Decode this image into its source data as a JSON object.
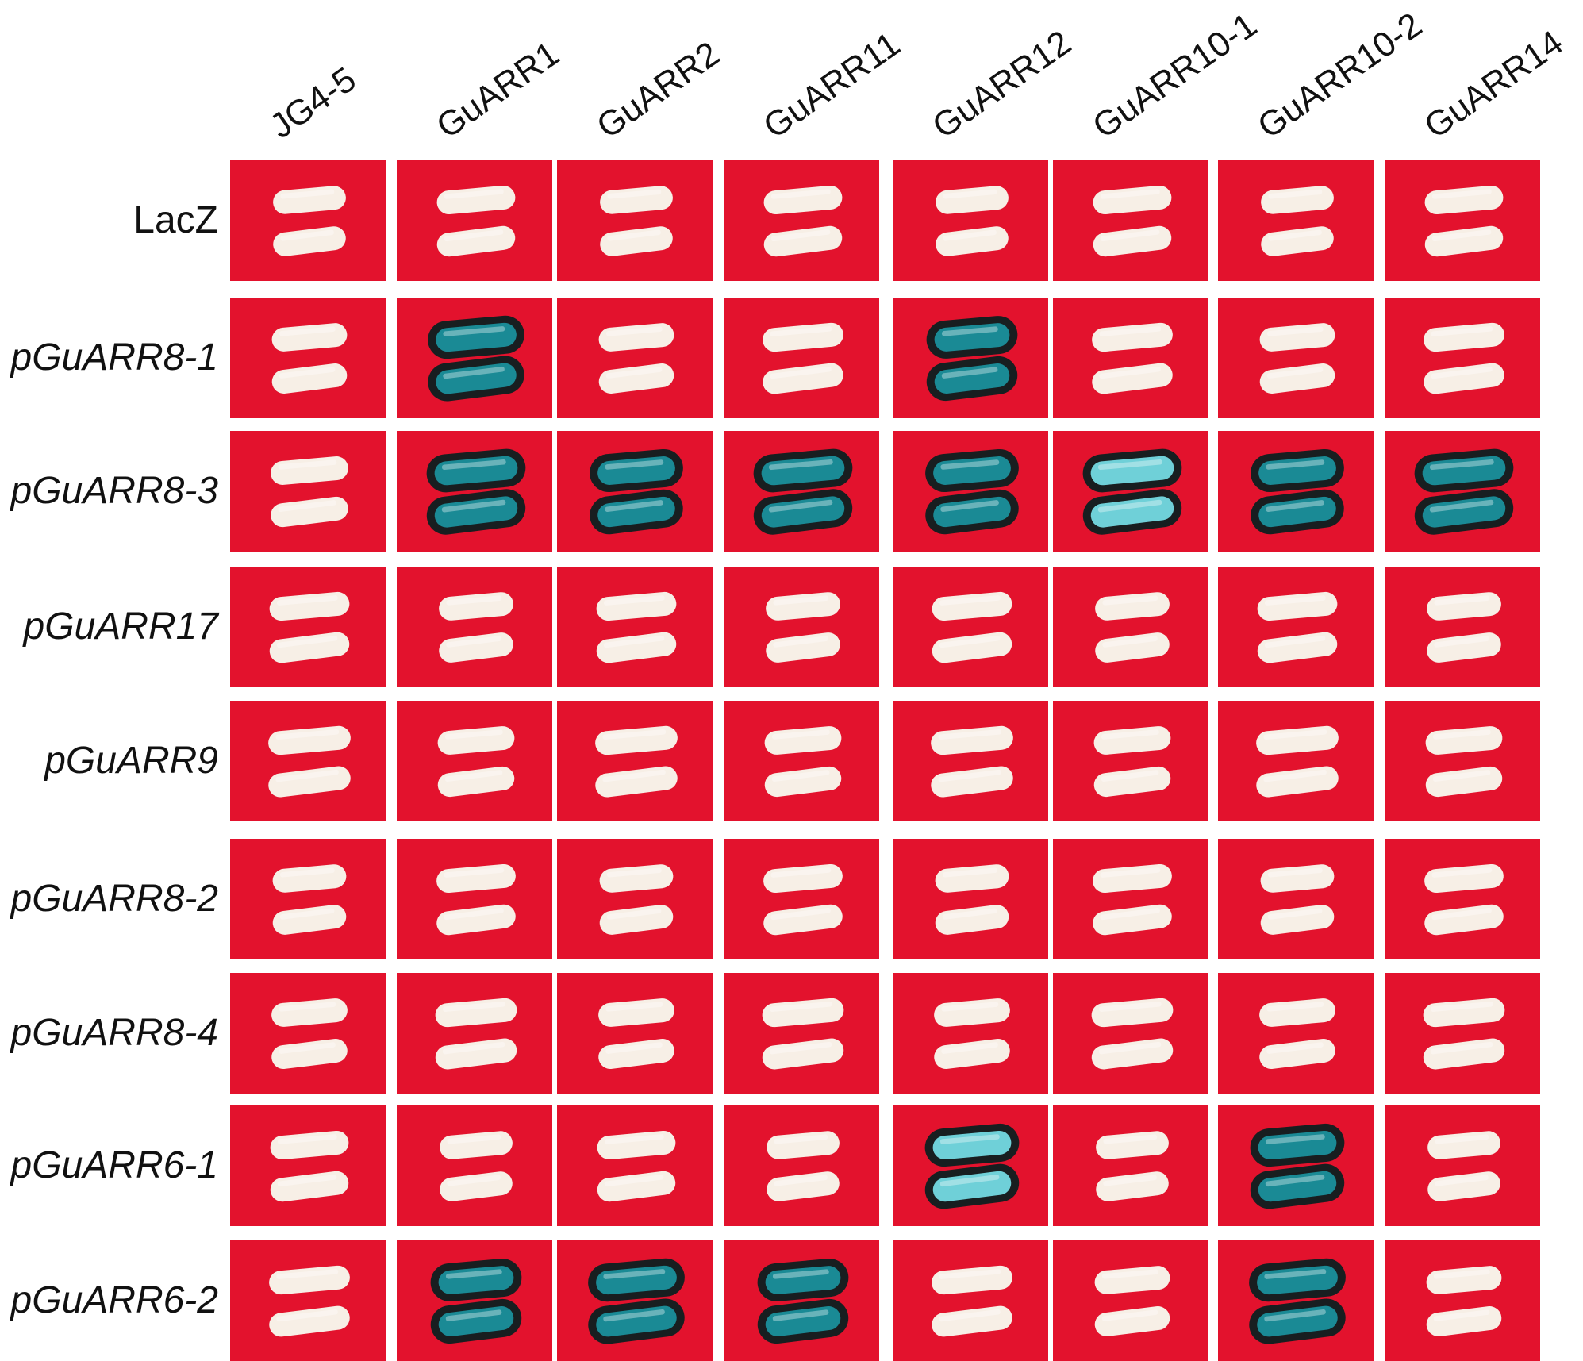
{
  "columns": [
    "JG4-5",
    "GuARR1",
    "GuARR2",
    "GuARR11",
    "GuARR12",
    "GuARR10-1",
    "GuARR10-2",
    "GuARR14"
  ],
  "rows": [
    {
      "label": "LacZ",
      "italic": false,
      "cells": [
        0,
        0,
        0,
        0,
        0,
        0,
        0,
        0
      ]
    },
    {
      "label": "pGuARR8-1",
      "italic": true,
      "cells": [
        0,
        1,
        0,
        0,
        1,
        0,
        0,
        0
      ]
    },
    {
      "label": "pGuARR8-3",
      "italic": true,
      "cells": [
        0,
        1,
        1,
        1,
        1,
        2,
        1,
        1
      ]
    },
    {
      "label": "pGuARR17",
      "italic": true,
      "cells": [
        0,
        0,
        0,
        0,
        0,
        0,
        0,
        0
      ]
    },
    {
      "label": "pGuARR9",
      "italic": true,
      "cells": [
        0,
        0,
        0,
        0,
        0,
        0,
        0,
        0
      ]
    },
    {
      "label": "pGuARR8-2",
      "italic": true,
      "cells": [
        0,
        0,
        0,
        0,
        0,
        0,
        0,
        0
      ]
    },
    {
      "label": "pGuARR8-4",
      "italic": true,
      "cells": [
        0,
        0,
        0,
        0,
        0,
        0,
        0,
        0
      ]
    },
    {
      "label": "pGuARR6-1",
      "italic": true,
      "cells": [
        0,
        0,
        0,
        0,
        2,
        0,
        1,
        0
      ]
    },
    {
      "label": "pGuARR6-2",
      "italic": true,
      "cells": [
        0,
        1,
        1,
        1,
        0,
        0,
        1,
        0
      ]
    }
  ],
  "legend_codes": {
    "0": "white",
    "1": "blue",
    "2": "light-blue"
  },
  "colors": {
    "plate_red": "#e3122d",
    "colony_white": "#f7efe6",
    "colony_blue": "#1a8a95",
    "colony_light_blue": "#6fd0d8",
    "halo_dark": "#06201f"
  }
}
